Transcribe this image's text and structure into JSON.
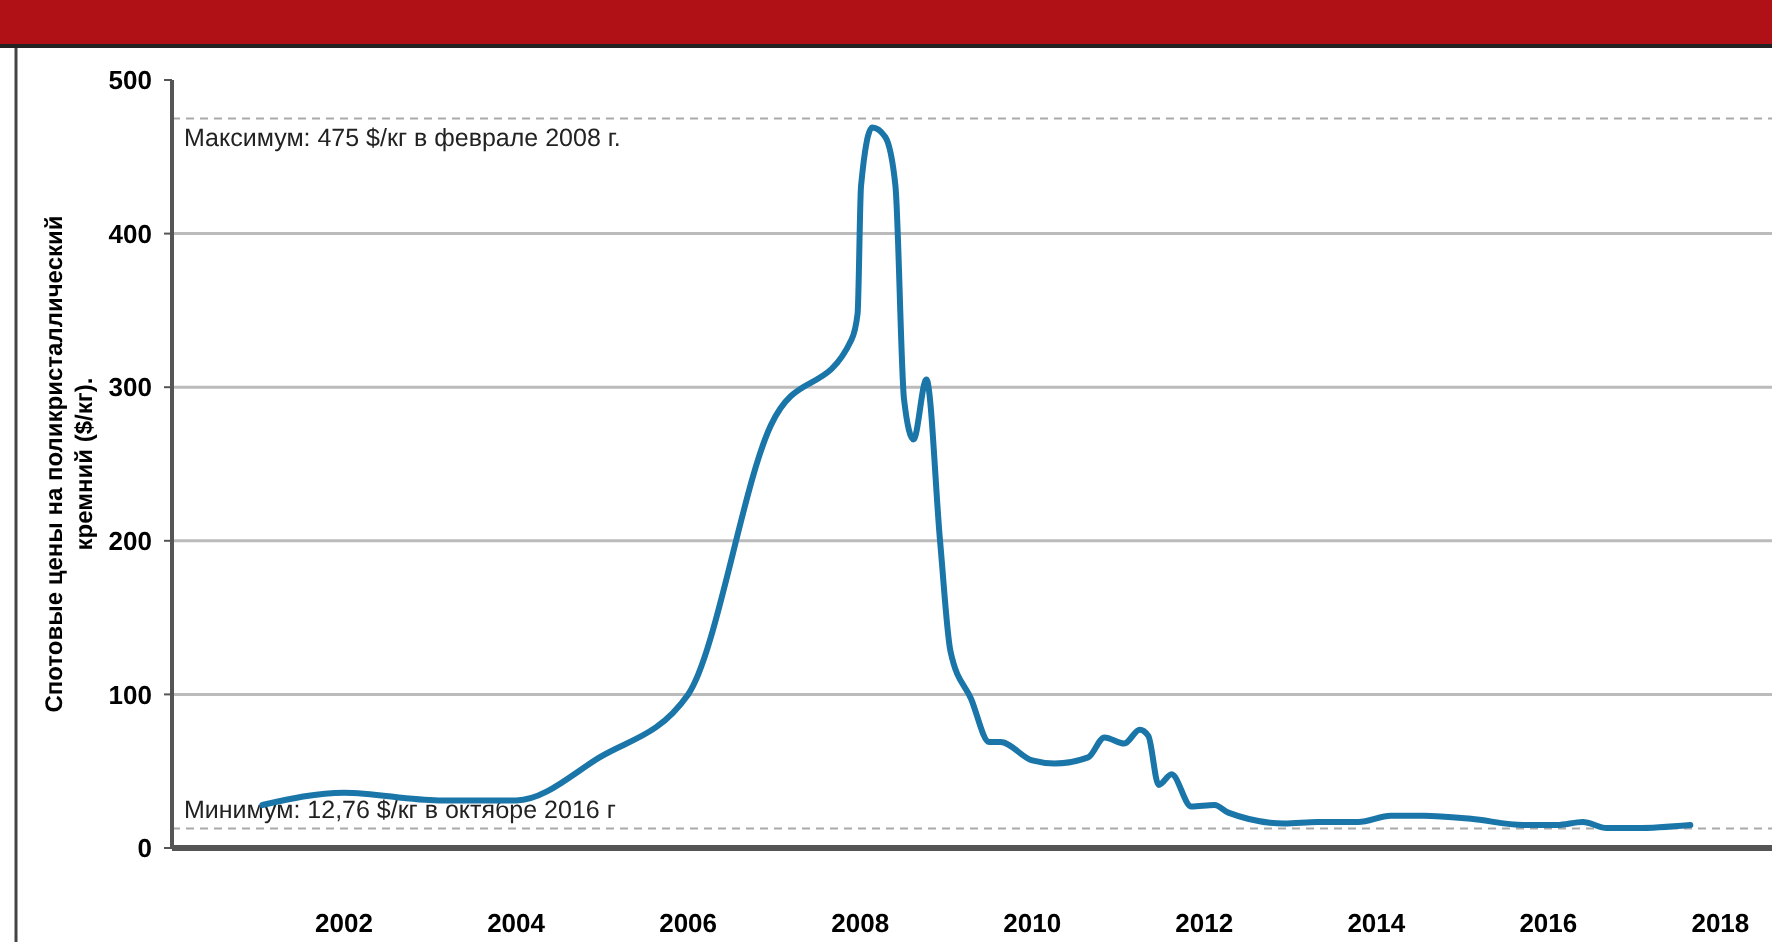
{
  "chart_data": {
    "type": "line",
    "ylabel": "Спотовые цены на поликристаллический кремний ($/кг).",
    "x": [
      2001.05,
      2002.0,
      2003.1,
      2004.0,
      2004.97,
      2006.0,
      2006.96,
      2007.9,
      2007.97,
      2008.01,
      2008.14,
      2008.29,
      2008.41,
      2008.51,
      2008.62,
      2008.77,
      2008.93,
      2009.05,
      2009.29,
      2009.5,
      2009.63,
      2010.0,
      2010.26,
      2010.65,
      2010.84,
      2011.07,
      2011.25,
      2011.35,
      2011.47,
      2011.62,
      2011.85,
      2012.12,
      2012.28,
      2012.93,
      2013.32,
      2013.79,
      2014.17,
      2014.55,
      2015.1,
      2015.71,
      2016.1,
      2016.4,
      2016.68,
      2017.03,
      2017.65
    ],
    "series": [
      {
        "color": "#1a75a8",
        "values": [
          28,
          36,
          31,
          31,
          59,
          100,
          275,
          331,
          348,
          431,
          469,
          463,
          431,
          292,
          266,
          305,
          199,
          128,
          97,
          69,
          69,
          57,
          55,
          59,
          72,
          68,
          77,
          73,
          41,
          48,
          27,
          28,
          23,
          16,
          17,
          17,
          21,
          21,
          19,
          15,
          15,
          17,
          13,
          13,
          15
        ]
      }
    ],
    "xlim": [
      2000,
      2018.6
    ],
    "xticks": [
      2002,
      2004,
      2006,
      2008,
      2010,
      2012,
      2014,
      2016,
      2018
    ],
    "ylim": [
      0,
      500
    ],
    "yticks": [
      0,
      100,
      200,
      300,
      400,
      500
    ],
    "grid": "y",
    "marker": "none",
    "line_style": "solid",
    "ref_lines": [
      {
        "axis": "y",
        "value": 475,
        "label": "Максимум: 475 $/кг в феврале 2008 г.",
        "color": "#aaaaaa",
        "line_style": "dashed"
      },
      {
        "axis": "y",
        "value": 12.76,
        "label": "Минимум: 12,76 $/кг в октябре 2016 г",
        "color": "#aaaaaa",
        "line_style": "dashed"
      }
    ]
  }
}
